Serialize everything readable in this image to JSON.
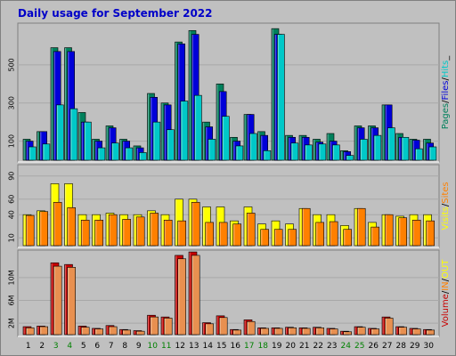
{
  "chart_data": {
    "type": "bar",
    "title": "Daily usage for September 2022",
    "categories": [
      "1",
      "2",
      "3",
      "4",
      "5",
      "6",
      "7",
      "8",
      "9",
      "10",
      "11",
      "12",
      "13",
      "14",
      "15",
      "16",
      "17",
      "18",
      "19",
      "20",
      "21",
      "22",
      "23",
      "24",
      "25",
      "26",
      "27",
      "28",
      "29",
      "30"
    ],
    "weekend_days": [
      "3",
      "4",
      "10",
      "11",
      "17",
      "18",
      "24",
      "25"
    ],
    "colors": {
      "pages": "#00805c",
      "files": "#0000d8",
      "hits": "#00c8c8",
      "visits": "#ffff00",
      "sites": "#ff8000",
      "volume": "#c80000",
      "weekday_label": "#000000",
      "weekend_label": "#008000",
      "panel_bg": "#c0c0c0",
      "title": "#0000c8"
    },
    "panels": [
      {
        "id": "hits-panel",
        "yticks": [
          "100",
          "300",
          "500"
        ],
        "ytick_values": [
          100,
          300,
          500
        ],
        "ymax": 700,
        "series": [
          {
            "name": "Pages",
            "values": [
              110,
              150,
              590,
              590,
              250,
              110,
              180,
              110,
              75,
              350,
              300,
              620,
              680,
              200,
              400,
              120,
              240,
              150,
              690,
              130,
              130,
              110,
              140,
              50,
              180,
              180,
              290,
              140,
              110,
              110
            ]
          },
          {
            "name": "Files",
            "values": [
              100,
              150,
              570,
              570,
              200,
              100,
              170,
              100,
              65,
              330,
              290,
              610,
              660,
              175,
              360,
              100,
              240,
              130,
              660,
              120,
              120,
              95,
              100,
              45,
              170,
              170,
              290,
              120,
              105,
              90
            ]
          },
          {
            "name": "Hits",
            "values": [
              70,
              85,
              290,
              270,
              200,
              65,
              90,
              65,
              40,
              200,
              160,
              310,
              340,
              110,
              230,
              75,
              140,
              50,
              660,
              90,
              80,
              85,
              80,
              25,
              110,
              130,
              170,
              120,
              60,
              70
            ]
          }
        ],
        "legend": [
          {
            "text": "Pages",
            "color": "#00805c"
          },
          {
            "text": "/",
            "color": "#000000"
          },
          {
            "text": "Files",
            "color": "#0000d8"
          },
          {
            "text": "/",
            "color": "#000000"
          },
          {
            "text": "Hits",
            "color": "#00c8c8"
          },
          {
            "text": "_",
            "color": "#000000"
          }
        ]
      },
      {
        "id": "visits-panel",
        "yticks": [
          "10",
          "40",
          "60",
          "90"
        ],
        "ytick_values": [
          10,
          40,
          60,
          90
        ],
        "ymax": 100,
        "series": [
          {
            "name": "Visits",
            "values": [
              40,
              45,
              80,
              80,
              40,
              40,
              42,
              40,
              40,
              45,
              40,
              60,
              60,
              50,
              50,
              32,
              50,
              28,
              32,
              28,
              48,
              40,
              40,
              26,
              48,
              30,
              40,
              38,
              40,
              40
            ]
          },
          {
            "name": "Sites",
            "values": [
              39,
              44,
              56,
              49,
              33,
              33,
              40,
              34,
              37,
              42,
              33,
              32,
              56,
              30,
              30,
              28,
              42,
              21,
              21,
              21,
              48,
              30,
              31,
              21,
              48,
              24,
              40,
              36,
              33,
              32
            ]
          }
        ],
        "legend": [
          {
            "text": "Visits",
            "color": "#ffff00"
          },
          {
            "text": "/",
            "color": "#000000"
          },
          {
            "text": "Sites",
            "color": "#ff8000"
          }
        ]
      },
      {
        "id": "volume-panel",
        "yticks": [
          "2M",
          "6M",
          "10M"
        ],
        "ytick_values": [
          2,
          6,
          10
        ],
        "ymax": 14.2,
        "series": [
          {
            "name": "Volume",
            "values": [
              1.4,
              1.5,
              12.6,
              12.3,
              1.5,
              1.1,
              1.6,
              0.9,
              0.7,
              3.4,
              3.1,
              13.9,
              14.5,
              2.1,
              3.3,
              0.9,
              2.6,
              1.2,
              1.2,
              1.3,
              1.2,
              1.3,
              1.1,
              0.6,
              1.4,
              1.1,
              3.1,
              1.4,
              1.1,
              0.9
            ]
          },
          {
            "name": "Volume-shadow",
            "values": [
              1.2,
              1.4,
              12.0,
              11.8,
              1.3,
              1.0,
              1.4,
              0.8,
              0.6,
              3.1,
              2.9,
              13.3,
              13.9,
              1.9,
              3.0,
              0.8,
              2.3,
              1.1,
              1.1,
              1.2,
              1.1,
              1.2,
              1.0,
              0.5,
              1.3,
              1.0,
              2.9,
              1.3,
              1.0,
              0.8
            ]
          }
        ],
        "legend": [
          {
            "text": "Volume",
            "color": "#c80000"
          },
          {
            "text": "/",
            "color": "#000000"
          },
          {
            "text": "IN",
            "color": "#ff8000"
          },
          {
            "text": "/",
            "color": "#000000"
          },
          {
            "text": "OUT",
            "color": "#ffff00"
          }
        ]
      }
    ]
  }
}
